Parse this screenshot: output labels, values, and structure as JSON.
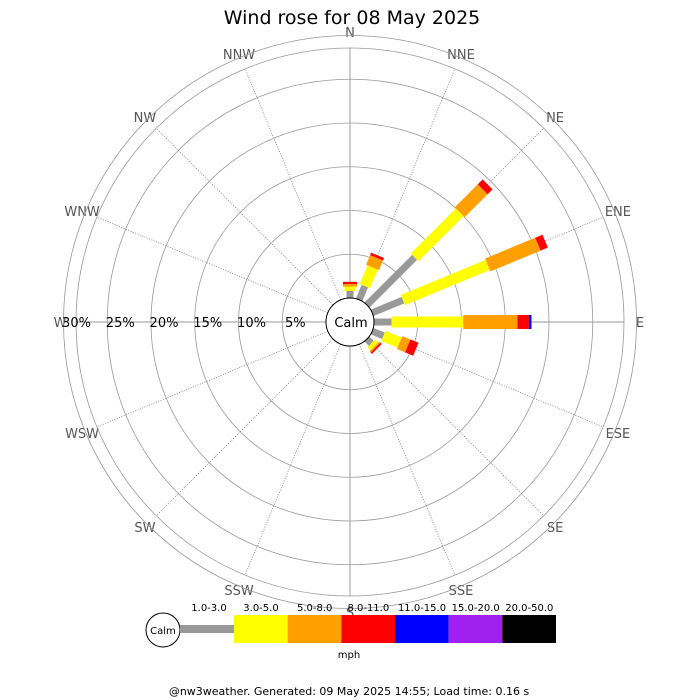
{
  "chart_data": {
    "type": "windrose",
    "title": "Wind rose for 08 May 2025",
    "directions": [
      "N",
      "NNE",
      "NE",
      "ENE",
      "E",
      "ESE",
      "SE",
      "SSE",
      "S",
      "SSW",
      "SW",
      "WSW",
      "W",
      "WNW",
      "NW",
      "NNW"
    ],
    "rings_percent": [
      5,
      10,
      15,
      20,
      25,
      30
    ],
    "ring_labels": [
      "5%",
      "10%",
      "15%",
      "20%",
      "25%",
      "30%"
    ],
    "center_label": "Calm",
    "units": "mph",
    "speed_bins": [
      {
        "label": "1.0-3.0",
        "color": "#999999"
      },
      {
        "label": "3.0-5.0",
        "color": "#ffff00"
      },
      {
        "label": "5.0-8.0",
        "color": "#ffa000"
      },
      {
        "label": "8.0-11.0",
        "color": "#ff0000"
      },
      {
        "label": "11.0-15.0",
        "color": "#0000ff"
      },
      {
        "label": "15.0-20.0",
        "color": "#a020f0"
      },
      {
        "label": "20.0-50.0",
        "color": "#000000"
      }
    ],
    "series": [
      {
        "direction": "N",
        "values": [
          0.8,
          0.5,
          0.3,
          0.25,
          0,
          0,
          0
        ]
      },
      {
        "direction": "NNE",
        "values": [
          1.7,
          2.3,
          1.2,
          0.3,
          0,
          0,
          0
        ]
      },
      {
        "direction": "NE",
        "values": [
          7.7,
          7.3,
          3.7,
          0.8,
          0,
          0,
          0
        ]
      },
      {
        "direction": "ENE",
        "values": [
          3.8,
          10.5,
          6.2,
          0.9,
          0,
          0,
          0
        ]
      },
      {
        "direction": "E",
        "values": [
          2.0,
          8.2,
          6.2,
          1.3,
          0.3,
          0,
          0
        ]
      },
      {
        "direction": "ESE",
        "values": [
          1.4,
          2.0,
          1.0,
          1.0,
          0,
          0,
          0
        ]
      },
      {
        "direction": "SE",
        "values": [
          0.7,
          0.5,
          0.2,
          0.2,
          0,
          0,
          0
        ]
      }
    ]
  },
  "footer": "@nw3weather. Generated: 09 May 2025 14:55; Load time: 0.16 s"
}
